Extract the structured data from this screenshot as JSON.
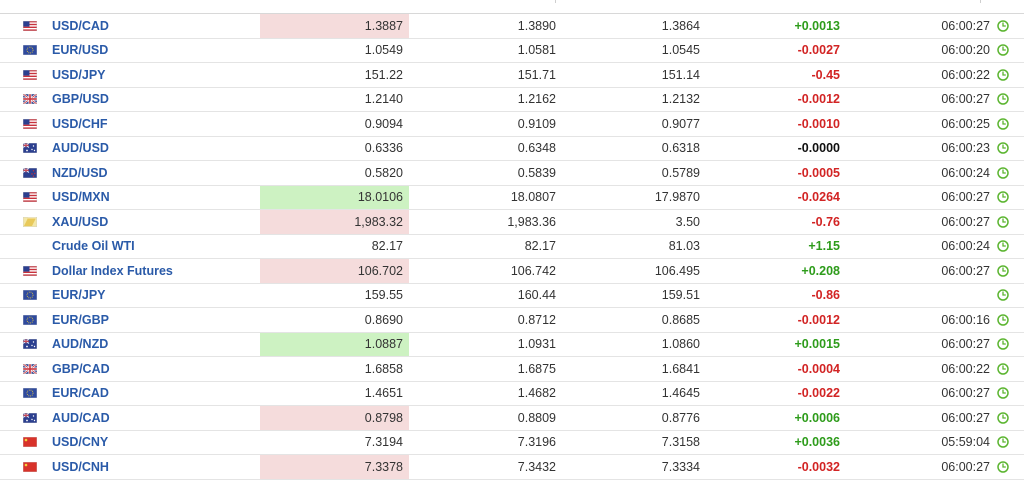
{
  "colors": {
    "positive": "#2e9c1b",
    "negative": "#d22424",
    "neutral": "#111111",
    "link": "#2a5aa8",
    "highlight_up": "#cdf2c2",
    "highlight_down": "#f5dcdc",
    "clock": "#5cb531"
  },
  "rows": [
    {
      "flag": "us-flag-icon",
      "name": "USD/CAD",
      "last": "1.3887",
      "high": "1.3890",
      "low": "1.3864",
      "change": "+0.0013",
      "dir": "pos",
      "time": "06:00:27",
      "hl": "down"
    },
    {
      "flag": "eu-flag-icon",
      "name": "EUR/USD",
      "last": "1.0549",
      "high": "1.0581",
      "low": "1.0545",
      "change": "-0.0027",
      "dir": "neg",
      "time": "06:00:20",
      "hl": ""
    },
    {
      "flag": "us-flag-icon",
      "name": "USD/JPY",
      "last": "151.22",
      "high": "151.71",
      "low": "151.14",
      "change": "-0.45",
      "dir": "neg",
      "time": "06:00:22",
      "hl": ""
    },
    {
      "flag": "gb-flag-icon",
      "name": "GBP/USD",
      "last": "1.2140",
      "high": "1.2162",
      "low": "1.2132",
      "change": "-0.0012",
      "dir": "neg",
      "time": "06:00:27",
      "hl": ""
    },
    {
      "flag": "us-flag-icon",
      "name": "USD/CHF",
      "last": "0.9094",
      "high": "0.9109",
      "low": "0.9077",
      "change": "-0.0010",
      "dir": "neg",
      "time": "06:00:25",
      "hl": ""
    },
    {
      "flag": "au-flag-icon",
      "name": "AUD/USD",
      "last": "0.6336",
      "high": "0.6348",
      "low": "0.6318",
      "change": "-0.0000",
      "dir": "zero",
      "time": "06:00:23",
      "hl": ""
    },
    {
      "flag": "nz-flag-icon",
      "name": "NZD/USD",
      "last": "0.5820",
      "high": "0.5839",
      "low": "0.5789",
      "change": "-0.0005",
      "dir": "neg",
      "time": "06:00:24",
      "hl": ""
    },
    {
      "flag": "us-flag-icon",
      "name": "USD/MXN",
      "last": "18.0106",
      "high": "18.0807",
      "low": "17.9870",
      "change": "-0.0264",
      "dir": "neg",
      "time": "06:00:27",
      "hl": "up"
    },
    {
      "flag": "gold-icon",
      "name": "XAU/USD",
      "last": "1,983.32",
      "high": "1,983.36",
      "low": "3.50",
      "change": "-0.76",
      "dir": "neg",
      "time": "06:00:27",
      "hl": "down"
    },
    {
      "flag": "",
      "name": "Crude Oil WTI",
      "last": "82.17",
      "high": "82.17",
      "low": "81.03",
      "change": "+1.15",
      "dir": "pos",
      "time": "06:00:24",
      "hl": ""
    },
    {
      "flag": "us-flag-icon",
      "name": "Dollar Index Futures",
      "last": "106.702",
      "high": "106.742",
      "low": "106.495",
      "change": "+0.208",
      "dir": "pos",
      "time": "06:00:27",
      "hl": "down"
    },
    {
      "flag": "eu-flag-icon",
      "name": "EUR/JPY",
      "last": "159.55",
      "high": "160.44",
      "low": "159.51",
      "change": "-0.86",
      "dir": "neg",
      "time": "",
      "hl": ""
    },
    {
      "flag": "eu-flag-icon",
      "name": "EUR/GBP",
      "last": "0.8690",
      "high": "0.8712",
      "low": "0.8685",
      "change": "-0.0012",
      "dir": "neg",
      "time": "06:00:16",
      "hl": ""
    },
    {
      "flag": "au-flag-icon",
      "name": "AUD/NZD",
      "last": "1.0887",
      "high": "1.0931",
      "low": "1.0860",
      "change": "+0.0015",
      "dir": "pos",
      "time": "06:00:27",
      "hl": "up"
    },
    {
      "flag": "gb-flag-icon",
      "name": "GBP/CAD",
      "last": "1.6858",
      "high": "1.6875",
      "low": "1.6841",
      "change": "-0.0004",
      "dir": "neg",
      "time": "06:00:22",
      "hl": ""
    },
    {
      "flag": "eu-flag-icon",
      "name": "EUR/CAD",
      "last": "1.4651",
      "high": "1.4682",
      "low": "1.4645",
      "change": "-0.0022",
      "dir": "neg",
      "time": "06:00:27",
      "hl": ""
    },
    {
      "flag": "au-flag-icon",
      "name": "AUD/CAD",
      "last": "0.8798",
      "high": "0.8809",
      "low": "0.8776",
      "change": "+0.0006",
      "dir": "pos",
      "time": "06:00:27",
      "hl": "down"
    },
    {
      "flag": "cn-flag-icon",
      "name": "USD/CNY",
      "last": "7.3194",
      "high": "7.3196",
      "low": "7.3158",
      "change": "+0.0036",
      "dir": "pos",
      "time": "05:59:04",
      "hl": ""
    },
    {
      "flag": "cn-flag-icon",
      "name": "USD/CNH",
      "last": "7.3378",
      "high": "7.3432",
      "low": "7.3334",
      "change": "-0.0032",
      "dir": "neg",
      "time": "06:00:27",
      "hl": "down"
    }
  ]
}
